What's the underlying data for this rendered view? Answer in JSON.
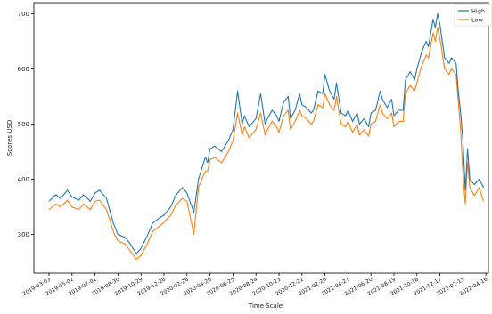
{
  "chart_data": {
    "type": "line",
    "title": "",
    "xlabel": "Time Scale",
    "ylabel": "Scores USD",
    "ylim": [
      230,
      720
    ],
    "grid": false,
    "legend_position": "top-right",
    "y_ticks": [
      300,
      400,
      500,
      600,
      700
    ],
    "x_tick_labels": [
      "2019-03-03",
      "2019-05-02",
      "2019-07-01",
      "2019-08-30",
      "2019-10-29",
      "2019-12-28",
      "2020-02-26",
      "2020-04-26",
      "2020-06-25",
      "2020-08-24",
      "2020-10-23",
      "2020-12-22",
      "2021-02-20",
      "2021-04-21",
      "2021-06-20",
      "2021-08-19",
      "2021-10-18",
      "2021-12-17",
      "2022-02-15",
      "2022-04-16"
    ],
    "x_label_positions": [
      0,
      1,
      2,
      3,
      4,
      5,
      6,
      7,
      8,
      9,
      10,
      11,
      12,
      13,
      14,
      15,
      16,
      17,
      18,
      19
    ],
    "x_range": [
      0,
      19.05
    ],
    "series": [
      {
        "name": "High",
        "color": "#1f77b4",
        "x": [
          0,
          0.3,
          0.5,
          0.8,
          1.0,
          1.3,
          1.5,
          1.8,
          2.0,
          2.2,
          2.5,
          2.8,
          3.0,
          3.3,
          3.5,
          3.8,
          4.0,
          4.3,
          4.5,
          4.8,
          5.0,
          5.3,
          5.5,
          5.8,
          6.0,
          6.3,
          6.5,
          6.8,
          6.9,
          7.0,
          7.2,
          7.5,
          7.8,
          8.0,
          8.2,
          8.4,
          8.5,
          8.7,
          8.9,
          9.0,
          9.2,
          9.4,
          9.5,
          9.7,
          9.9,
          10.0,
          10.2,
          10.4,
          10.5,
          10.7,
          10.9,
          11.0,
          11.2,
          11.4,
          11.5,
          11.7,
          11.9,
          12.0,
          12.2,
          12.4,
          12.5,
          12.7,
          12.9,
          13.0,
          13.2,
          13.4,
          13.5,
          13.7,
          13.9,
          14.0,
          14.2,
          14.4,
          14.5,
          14.7,
          14.9,
          15.0,
          15.2,
          15.4,
          15.5,
          15.7,
          15.9,
          16.0,
          16.2,
          16.4,
          16.5,
          16.7,
          16.8,
          16.9,
          17.0,
          17.2,
          17.4,
          17.5,
          17.7,
          17.8,
          17.9,
          18.0,
          18.1,
          18.2,
          18.3,
          18.5,
          18.7,
          18.9
        ],
        "y": [
          360,
          372,
          365,
          380,
          368,
          362,
          372,
          360,
          375,
          380,
          365,
          320,
          300,
          295,
          285,
          265,
          275,
          300,
          320,
          330,
          335,
          350,
          370,
          385,
          375,
          340,
          400,
          440,
          430,
          455,
          460,
          450,
          470,
          490,
          560,
          500,
          515,
          495,
          505,
          510,
          555,
          500,
          510,
          525,
          515,
          505,
          540,
          550,
          510,
          525,
          555,
          535,
          530,
          520,
          525,
          560,
          555,
          590,
          560,
          545,
          575,
          520,
          515,
          525,
          505,
          520,
          500,
          510,
          495,
          520,
          525,
          560,
          545,
          530,
          545,
          515,
          525,
          525,
          580,
          595,
          580,
          600,
          630,
          650,
          640,
          690,
          675,
          700,
          680,
          620,
          610,
          620,
          610,
          560,
          520,
          470,
          380,
          455,
          400,
          390,
          400,
          385
        ]
      },
      {
        "name": "Low",
        "color": "#ff7f0e",
        "x": [
          0,
          0.3,
          0.5,
          0.8,
          1.0,
          1.3,
          1.5,
          1.8,
          2.0,
          2.2,
          2.5,
          2.8,
          3.0,
          3.3,
          3.5,
          3.8,
          4.0,
          4.3,
          4.5,
          4.8,
          5.0,
          5.3,
          5.5,
          5.8,
          6.0,
          6.3,
          6.5,
          6.8,
          6.9,
          7.0,
          7.2,
          7.5,
          7.8,
          8.0,
          8.2,
          8.4,
          8.5,
          8.7,
          8.9,
          9.0,
          9.2,
          9.4,
          9.5,
          9.7,
          9.9,
          10.0,
          10.2,
          10.4,
          10.5,
          10.7,
          10.9,
          11.0,
          11.2,
          11.4,
          11.5,
          11.7,
          11.9,
          12.0,
          12.2,
          12.4,
          12.5,
          12.7,
          12.9,
          13.0,
          13.2,
          13.4,
          13.5,
          13.7,
          13.9,
          14.0,
          14.2,
          14.4,
          14.5,
          14.7,
          14.9,
          15.0,
          15.2,
          15.4,
          15.5,
          15.7,
          15.9,
          16.0,
          16.2,
          16.4,
          16.5,
          16.7,
          16.8,
          16.9,
          17.0,
          17.2,
          17.4,
          17.5,
          17.7,
          17.8,
          17.9,
          18.0,
          18.1,
          18.2,
          18.3,
          18.5,
          18.7,
          18.9
        ],
        "y": [
          345,
          355,
          350,
          362,
          350,
          345,
          355,
          345,
          360,
          362,
          345,
          305,
          288,
          283,
          272,
          255,
          262,
          285,
          305,
          315,
          322,
          335,
          352,
          365,
          360,
          300,
          385,
          415,
          415,
          435,
          440,
          430,
          450,
          470,
          520,
          480,
          495,
          475,
          485,
          490,
          520,
          480,
          490,
          505,
          495,
          485,
          515,
          525,
          490,
          505,
          525,
          515,
          510,
          500,
          505,
          535,
          530,
          555,
          535,
          525,
          550,
          500,
          495,
          505,
          485,
          500,
          480,
          490,
          478,
          500,
          505,
          535,
          520,
          510,
          520,
          495,
          505,
          505,
          555,
          570,
          560,
          575,
          605,
          625,
          620,
          665,
          650,
          675,
          655,
          600,
          590,
          600,
          590,
          540,
          490,
          410,
          355,
          430,
          385,
          370,
          385,
          360
        ]
      }
    ]
  }
}
